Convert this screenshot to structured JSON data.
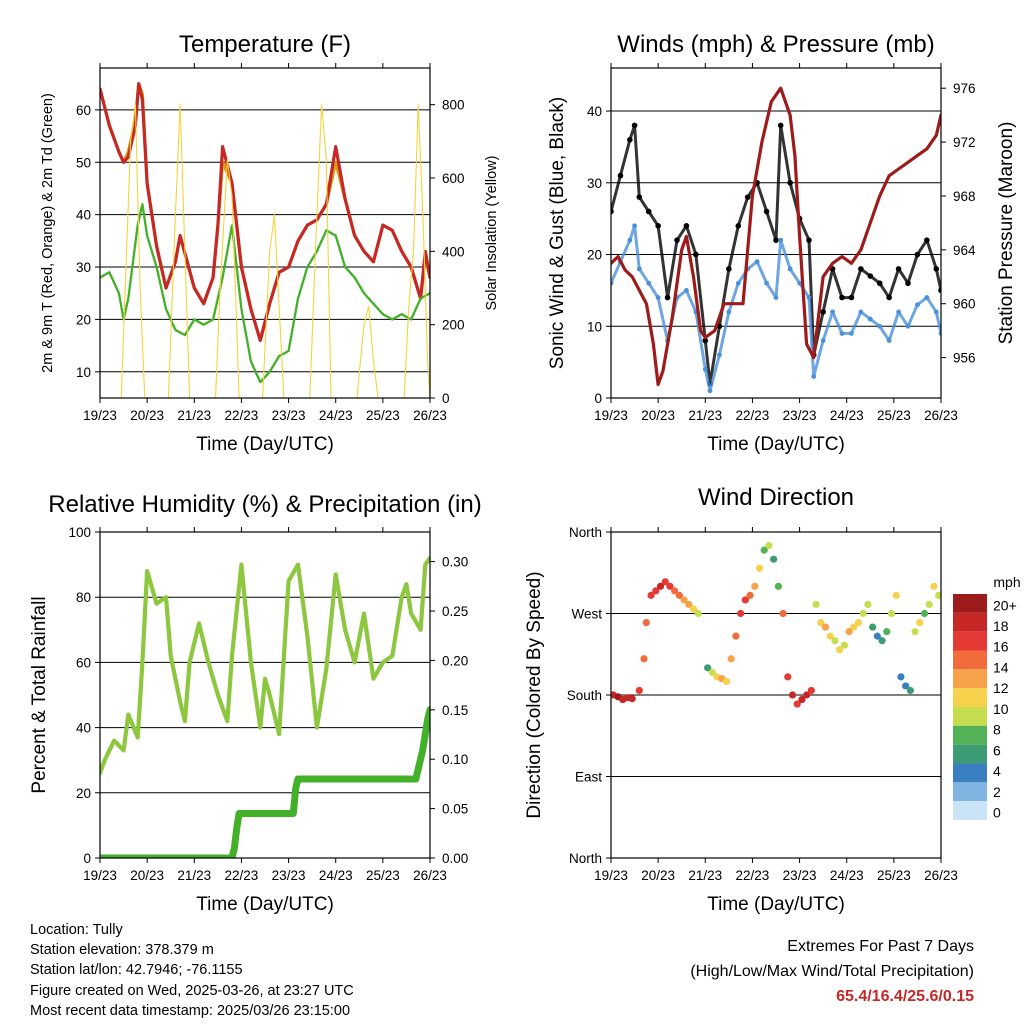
{
  "footer": {
    "location": "Location: Tully",
    "elevation": "Station elevation: 378.379 m",
    "latlon": "Station lat/lon: 42.7946; -76.1155",
    "created": "Figure created on Wed, 2025-03-26, at 23:27 UTC",
    "recent": "Most recent data timestamp: 2025/03/26 23:15:00"
  },
  "extremes": {
    "title": "Extremes For Past 7 Days",
    "subtitle": "(High/Low/Max Wind/Total Precipitation)",
    "value": "65.4/16.4/25.6/0.15",
    "color": "#c62828"
  },
  "chart_data": [
    {
      "id": "temperature",
      "type": "line",
      "title": "Temperature (F)",
      "xlabel": "Time (Day/UTC)",
      "ylabel": "2m & 9m T (Red, Orange) & 2m Td (Green)",
      "y2label": "Solar Insolation (Yellow)",
      "x_ticks": [
        "19/23",
        "20/23",
        "21/23",
        "22/23",
        "23/23",
        "24/23",
        "25/23",
        "26/23"
      ],
      "xlim": [
        0,
        7
      ],
      "ylim": [
        5,
        68
      ],
      "yticks": [
        10,
        20,
        30,
        40,
        50,
        60
      ],
      "y2lim": [
        0,
        900
      ],
      "y2ticks": [
        0,
        200,
        400,
        600,
        800
      ],
      "grid": "horizontal",
      "series": [
        {
          "id": "t2m",
          "color": "#d4a017",
          "axis": "left",
          "x": [
            0,
            0.2,
            0.4,
            0.5,
            0.6,
            0.75,
            0.82,
            0.9,
            1.0,
            1.2,
            1.4,
            1.6,
            1.7,
            1.85,
            2.0,
            2.2,
            2.4,
            2.5,
            2.6,
            2.8,
            3.0,
            3.2,
            3.4,
            3.6,
            3.8,
            4.0,
            4.2,
            4.4,
            4.6,
            4.8,
            5.0,
            5.2,
            5.4,
            5.6,
            5.8,
            6.0,
            6.2,
            6.4,
            6.6,
            6.8,
            6.9,
            7.0
          ],
          "values": [
            64,
            57,
            52,
            50,
            52,
            58,
            65,
            63,
            46,
            34,
            26,
            31,
            36,
            31,
            26,
            23,
            28,
            38,
            50,
            46,
            30,
            22,
            16,
            23,
            29,
            30,
            35,
            38,
            39,
            42,
            50,
            43,
            36,
            33,
            31,
            38,
            37,
            33,
            30,
            24,
            32,
            28
          ]
        },
        {
          "id": "t9m",
          "color": "#c62828",
          "axis": "left",
          "x": [
            0,
            0.2,
            0.4,
            0.5,
            0.6,
            0.75,
            0.82,
            0.9,
            1.0,
            1.2,
            1.4,
            1.6,
            1.7,
            1.85,
            2.0,
            2.2,
            2.4,
            2.5,
            2.6,
            2.8,
            3.0,
            3.2,
            3.4,
            3.6,
            3.8,
            4.0,
            4.2,
            4.4,
            4.6,
            4.8,
            5.0,
            5.2,
            5.4,
            5.6,
            5.8,
            6.0,
            6.2,
            6.4,
            6.6,
            6.8,
            6.9,
            7.0
          ],
          "values": [
            64,
            57,
            52,
            50,
            51,
            57,
            65,
            62,
            46,
            34,
            26,
            31,
            36,
            31,
            26,
            23,
            28,
            38,
            53,
            46,
            30,
            22,
            16,
            23,
            29,
            30,
            35,
            38,
            39,
            42,
            53,
            43,
            36,
            33,
            31,
            38,
            37,
            33,
            30,
            24,
            33,
            28
          ]
        },
        {
          "id": "td2m",
          "color": "#43b02a",
          "axis": "left",
          "x": [
            0,
            0.2,
            0.4,
            0.5,
            0.6,
            0.8,
            0.9,
            1.0,
            1.2,
            1.4,
            1.6,
            1.8,
            2.0,
            2.2,
            2.4,
            2.6,
            2.8,
            3.0,
            3.2,
            3.4,
            3.6,
            3.8,
            4.0,
            4.2,
            4.4,
            4.6,
            4.8,
            5.0,
            5.2,
            5.4,
            5.6,
            5.8,
            6.0,
            6.2,
            6.4,
            6.6,
            6.8,
            7.0
          ],
          "values": [
            28,
            29,
            25,
            20,
            24,
            38,
            42,
            36,
            30,
            22,
            18,
            17,
            20,
            19,
            20,
            28,
            38,
            22,
            12,
            8,
            10,
            13,
            14,
            24,
            30,
            33,
            37,
            36,
            30,
            28,
            25,
            23,
            21,
            20,
            21,
            20,
            24,
            25
          ]
        },
        {
          "id": "solar",
          "color": "#f5d43a",
          "axis": "right",
          "x": [
            0,
            0.45,
            0.55,
            0.65,
            0.75,
            0.85,
            0.95,
            1.45,
            1.6,
            1.7,
            1.8,
            1.9,
            2.45,
            2.55,
            2.7,
            2.8,
            2.9,
            2.95,
            3.45,
            3.6,
            3.7,
            3.8,
            3.9,
            4.45,
            4.6,
            4.7,
            4.8,
            4.9,
            5.45,
            5.6,
            5.7,
            5.8,
            5.9,
            6.45,
            6.55,
            6.65,
            6.75,
            6.85,
            6.95,
            7.0
          ],
          "values": [
            0,
            0,
            350,
            700,
            800,
            300,
            0,
            0,
            500,
            800,
            400,
            0,
            0,
            300,
            650,
            550,
            200,
            0,
            0,
            400,
            500,
            250,
            0,
            0,
            500,
            800,
            650,
            0,
            0,
            200,
            250,
            100,
            0,
            0,
            250,
            400,
            800,
            500,
            100,
            0
          ]
        }
      ]
    },
    {
      "id": "winds",
      "type": "scatter",
      "title": "Winds (mph) & Pressure (mb)",
      "xlabel": "Time (Day/UTC)",
      "ylabel": "Sonic Wind & Gust (Blue, Black)",
      "y2label": "Station Pressure (Maroon)",
      "x_ticks": [
        "19/23",
        "20/23",
        "21/23",
        "22/23",
        "23/23",
        "24/23",
        "25/23",
        "26/23"
      ],
      "xlim": [
        0,
        7
      ],
      "ylim": [
        0,
        46
      ],
      "yticks": [
        0,
        10,
        20,
        30,
        40
      ],
      "y2lim": [
        953,
        977.5
      ],
      "y2ticks": [
        956,
        960,
        964,
        968,
        972,
        976
      ],
      "grid": "horizontal",
      "series": [
        {
          "id": "gust",
          "color": "#000000",
          "axis": "left",
          "x": [
            0,
            0.2,
            0.4,
            0.5,
            0.6,
            0.8,
            1.0,
            1.2,
            1.4,
            1.6,
            1.8,
            2.0,
            2.1,
            2.3,
            2.5,
            2.7,
            2.9,
            3.1,
            3.3,
            3.5,
            3.6,
            3.8,
            4.0,
            4.2,
            4.3,
            4.5,
            4.7,
            4.9,
            5.1,
            5.3,
            5.5,
            5.7,
            5.9,
            6.1,
            6.3,
            6.5,
            6.7,
            6.9,
            7.0
          ],
          "values": [
            26,
            31,
            36,
            38,
            28,
            26,
            24,
            14,
            22,
            24,
            20,
            8,
            2,
            10,
            18,
            24,
            28,
            30,
            26,
            22,
            38,
            30,
            25,
            22,
            6,
            12,
            18,
            14,
            14,
            18,
            17,
            16,
            14,
            18,
            16,
            20,
            22,
            18,
            15
          ]
        },
        {
          "id": "wind",
          "color": "#4a90d9",
          "axis": "left",
          "x": [
            0,
            0.2,
            0.4,
            0.5,
            0.6,
            0.8,
            1.0,
            1.2,
            1.4,
            1.6,
            1.8,
            2.0,
            2.1,
            2.3,
            2.5,
            2.7,
            2.9,
            3.1,
            3.3,
            3.5,
            3.6,
            3.8,
            4.0,
            4.2,
            4.3,
            4.5,
            4.7,
            4.9,
            5.1,
            5.3,
            5.5,
            5.7,
            5.9,
            6.1,
            6.3,
            6.5,
            6.7,
            6.9,
            7.0
          ],
          "values": [
            16,
            19,
            22,
            24,
            18,
            16,
            14,
            8,
            14,
            15,
            12,
            4,
            1,
            6,
            12,
            16,
            18,
            19,
            16,
            14,
            22,
            18,
            16,
            14,
            3,
            8,
            12,
            9,
            9,
            12,
            11,
            10,
            8,
            12,
            10,
            13,
            14,
            12,
            9
          ]
        },
        {
          "id": "pressure",
          "color": "#9e1b1b",
          "axis": "right",
          "x": [
            0,
            0.15,
            0.3,
            0.45,
            0.6,
            0.75,
            0.9,
            1.0,
            1.1,
            1.3,
            1.5,
            1.6,
            1.75,
            1.9,
            2.0,
            2.2,
            2.4,
            2.6,
            2.8,
            3.0,
            3.2,
            3.4,
            3.6,
            3.8,
            3.9,
            4.0,
            4.15,
            4.3,
            4.5,
            4.7,
            4.9,
            5.1,
            5.3,
            5.5,
            5.7,
            5.9,
            6.1,
            6.3,
            6.5,
            6.7,
            6.9,
            7.0
          ],
          "values": [
            963,
            963.5,
            962.5,
            962,
            961,
            960,
            957,
            954,
            955,
            959,
            964,
            965,
            962,
            958,
            957.5,
            958,
            960,
            960,
            960,
            968,
            972,
            975,
            976,
            974,
            971,
            965,
            957,
            956,
            962,
            963,
            963.5,
            963,
            964,
            966,
            968,
            969.5,
            970,
            970.5,
            971,
            971.5,
            972.5,
            974
          ]
        }
      ]
    },
    {
      "id": "rh_precip",
      "type": "line",
      "title": "Relative Humidity (%) & Precipitation (in)",
      "xlabel": "Time (Day/UTC)",
      "ylabel": "Percent & Total Rainfall",
      "x_ticks": [
        "19/23",
        "20/23",
        "21/23",
        "22/23",
        "23/23",
        "24/23",
        "25/23",
        "26/23"
      ],
      "xlim": [
        0,
        7
      ],
      "ylim": [
        0,
        100
      ],
      "yticks": [
        0,
        20,
        40,
        60,
        80,
        100
      ],
      "y2lim": [
        0,
        0.33
      ],
      "y2ticks": [
        0.0,
        0.05,
        0.1,
        0.15,
        0.2,
        0.25,
        0.3
      ],
      "y2tick_labels": [
        "0.00",
        "0.05",
        "0.10",
        "0.15",
        "0.20",
        "0.25",
        "0.30"
      ],
      "grid": "horizontal",
      "series": [
        {
          "id": "rh",
          "color": "#8dc63f",
          "axis": "left",
          "x": [
            0,
            0.1,
            0.3,
            0.5,
            0.6,
            0.8,
            0.9,
            1.0,
            1.2,
            1.4,
            1.5,
            1.7,
            1.8,
            1.9,
            2.1,
            2.3,
            2.5,
            2.7,
            2.8,
            3.0,
            3.2,
            3.4,
            3.5,
            3.6,
            3.8,
            4.0,
            4.2,
            4.4,
            4.6,
            4.8,
            5.0,
            5.2,
            5.4,
            5.6,
            5.8,
            6.0,
            6.2,
            6.4,
            6.5,
            6.6,
            6.8,
            6.9,
            7.0
          ],
          "values": [
            26,
            30,
            36,
            33,
            44,
            37,
            60,
            88,
            78,
            80,
            62,
            48,
            42,
            60,
            72,
            60,
            50,
            42,
            62,
            90,
            60,
            40,
            55,
            50,
            38,
            85,
            90,
            68,
            40,
            58,
            87,
            70,
            60,
            75,
            55,
            60,
            62,
            80,
            84,
            75,
            70,
            90,
            92
          ]
        },
        {
          "id": "precip",
          "color": "#43b02a",
          "axis": "right",
          "x": [
            0,
            2.8,
            2.85,
            2.9,
            2.95,
            3.0,
            4.1,
            4.15,
            4.2,
            6.7,
            6.75,
            6.85,
            6.95,
            7.0
          ],
          "values": [
            0,
            0,
            0.01,
            0.03,
            0.045,
            0.045,
            0.045,
            0.07,
            0.08,
            0.08,
            0.09,
            0.11,
            0.14,
            0.15
          ]
        }
      ]
    },
    {
      "id": "wind_direction",
      "type": "scatter",
      "title": "Wind Direction",
      "xlabel": "Time (Day/UTC)",
      "ylabel": "Direction (Colored By Speed)",
      "x_ticks": [
        "19/23",
        "20/23",
        "21/23",
        "22/23",
        "23/23",
        "24/23",
        "25/23",
        "26/23"
      ],
      "xlim": [
        0,
        7
      ],
      "ylim": [
        0,
        360
      ],
      "ytick_values": [
        0,
        90,
        180,
        270,
        360
      ],
      "ytick_labels": [
        "North",
        "East",
        "South",
        "West",
        "North"
      ],
      "grid": "horizontal",
      "colorbar": {
        "title": "mph",
        "labels": [
          "20+",
          "18",
          "16",
          "14",
          "12",
          "10",
          "8",
          "6",
          "4",
          "2",
          "0"
        ],
        "colors": [
          "#9e1b1b",
          "#c62828",
          "#e53935",
          "#f26b3a",
          "#f5a24a",
          "#f6d14b",
          "#c5dd4f",
          "#53b157",
          "#3d9c73",
          "#3a7fbf",
          "#7fb5e0",
          "#c8e4f5"
        ]
      },
      "x": [
        0.05,
        0.15,
        0.25,
        0.35,
        0.45,
        0.6,
        0.7,
        0.75,
        0.85,
        0.95,
        1.05,
        1.15,
        1.25,
        1.35,
        1.45,
        1.55,
        1.65,
        1.75,
        1.85,
        2.05,
        2.15,
        2.25,
        2.35,
        2.45,
        2.55,
        2.65,
        2.75,
        2.85,
        2.95,
        3.05,
        3.15,
        3.25,
        3.35,
        3.45,
        3.55,
        3.65,
        3.75,
        3.85,
        3.95,
        4.05,
        4.15,
        4.25,
        4.35,
        4.45,
        4.55,
        4.65,
        4.75,
        4.85,
        4.95,
        5.05,
        5.15,
        5.25,
        5.35,
        5.45,
        5.55,
        5.65,
        5.75,
        5.85,
        5.95,
        6.05,
        6.15,
        6.25,
        6.35,
        6.45,
        6.55,
        6.65,
        6.75,
        6.85,
        6.95
      ],
      "values": [
        180,
        178,
        175,
        177,
        176,
        185,
        220,
        260,
        290,
        295,
        300,
        305,
        300,
        295,
        290,
        285,
        280,
        275,
        270,
        210,
        205,
        200,
        198,
        195,
        220,
        245,
        270,
        285,
        290,
        300,
        320,
        340,
        345,
        330,
        300,
        270,
        200,
        180,
        170,
        175,
        180,
        185,
        280,
        260,
        255,
        245,
        240,
        230,
        235,
        250,
        255,
        260,
        270,
        280,
        255,
        245,
        240,
        250,
        270,
        290,
        200,
        190,
        185,
        250,
        260,
        270,
        280,
        300,
        290
      ],
      "speeds": [
        19,
        20,
        19,
        18,
        19,
        17,
        15,
        14,
        16,
        17,
        18,
        17,
        16,
        15,
        14,
        13,
        12,
        10,
        8,
        4,
        8,
        10,
        12,
        11,
        13,
        15,
        16,
        17,
        14,
        12,
        10,
        6,
        8,
        4,
        6,
        14,
        16,
        18,
        17,
        19,
        18,
        16,
        8,
        10,
        12,
        11,
        9,
        10,
        8,
        12,
        11,
        10,
        9,
        8,
        4,
        3,
        5,
        6,
        9,
        10,
        2,
        3,
        4,
        8,
        10,
        7,
        9,
        11,
        8
      ]
    }
  ]
}
